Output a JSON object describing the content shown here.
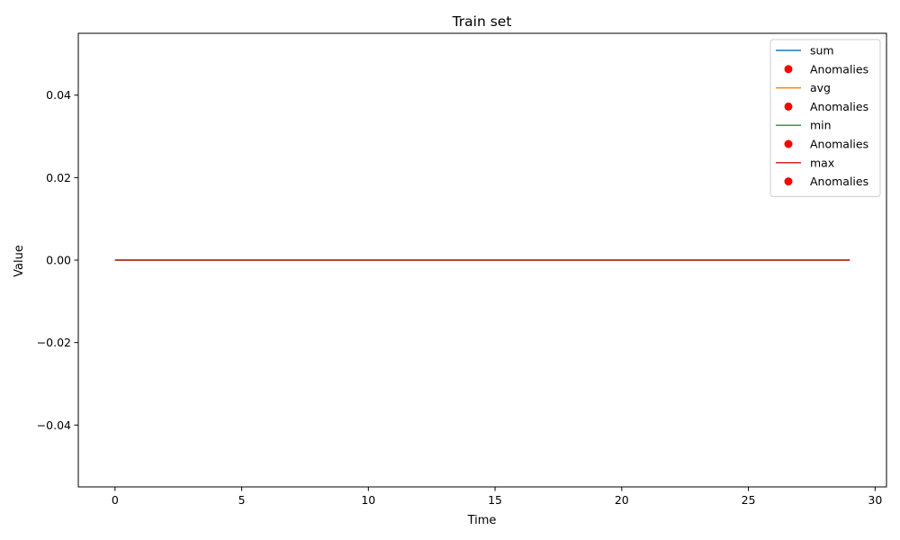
{
  "chart_data": {
    "type": "line",
    "title": "Train set",
    "xlabel": "Time",
    "ylabel": "Value",
    "xlim": [
      -1.45,
      30.45
    ],
    "ylim": [
      -0.055,
      0.055
    ],
    "xticks": [
      0,
      5,
      10,
      15,
      20,
      25,
      30
    ],
    "xtick_labels": [
      "0",
      "5",
      "10",
      "15",
      "20",
      "25",
      "30"
    ],
    "yticks": [
      -0.04,
      -0.02,
      0.0,
      0.02,
      0.04
    ],
    "ytick_labels": [
      "−0.04",
      "−0.02",
      "0.00",
      "0.02",
      "0.04"
    ],
    "grid": false,
    "legend_position": "top-right",
    "x": [
      0,
      1,
      2,
      3,
      4,
      5,
      6,
      7,
      8,
      9,
      10,
      11,
      12,
      13,
      14,
      15,
      16,
      17,
      18,
      19,
      20,
      21,
      22,
      23,
      24,
      25,
      26,
      27,
      28,
      29
    ],
    "series": [
      {
        "name": "sum",
        "kind": "line",
        "color": "#1f77b4",
        "values": [
          0,
          0,
          0,
          0,
          0,
          0,
          0,
          0,
          0,
          0,
          0,
          0,
          0,
          0,
          0,
          0,
          0,
          0,
          0,
          0,
          0,
          0,
          0,
          0,
          0,
          0,
          0,
          0,
          0,
          0
        ]
      },
      {
        "name": "Anomalies",
        "kind": "scatter",
        "color": "#ff0000",
        "points": []
      },
      {
        "name": "avg",
        "kind": "line",
        "color": "#ff7f0e",
        "values": [
          0,
          0,
          0,
          0,
          0,
          0,
          0,
          0,
          0,
          0,
          0,
          0,
          0,
          0,
          0,
          0,
          0,
          0,
          0,
          0,
          0,
          0,
          0,
          0,
          0,
          0,
          0,
          0,
          0,
          0
        ]
      },
      {
        "name": "Anomalies",
        "kind": "scatter",
        "color": "#ff0000",
        "points": []
      },
      {
        "name": "min",
        "kind": "line",
        "color": "#2ca02c",
        "values": [
          0,
          0,
          0,
          0,
          0,
          0,
          0,
          0,
          0,
          0,
          0,
          0,
          0,
          0,
          0,
          0,
          0,
          0,
          0,
          0,
          0,
          0,
          0,
          0,
          0,
          0,
          0,
          0,
          0,
          0
        ]
      },
      {
        "name": "Anomalies",
        "kind": "scatter",
        "color": "#ff0000",
        "points": []
      },
      {
        "name": "max",
        "kind": "line",
        "color": "#d62728",
        "values": [
          0,
          0,
          0,
          0,
          0,
          0,
          0,
          0,
          0,
          0,
          0,
          0,
          0,
          0,
          0,
          0,
          0,
          0,
          0,
          0,
          0,
          0,
          0,
          0,
          0,
          0,
          0,
          0,
          0,
          0
        ]
      },
      {
        "name": "Anomalies",
        "kind": "scatter",
        "color": "#ff0000",
        "points": []
      }
    ]
  }
}
